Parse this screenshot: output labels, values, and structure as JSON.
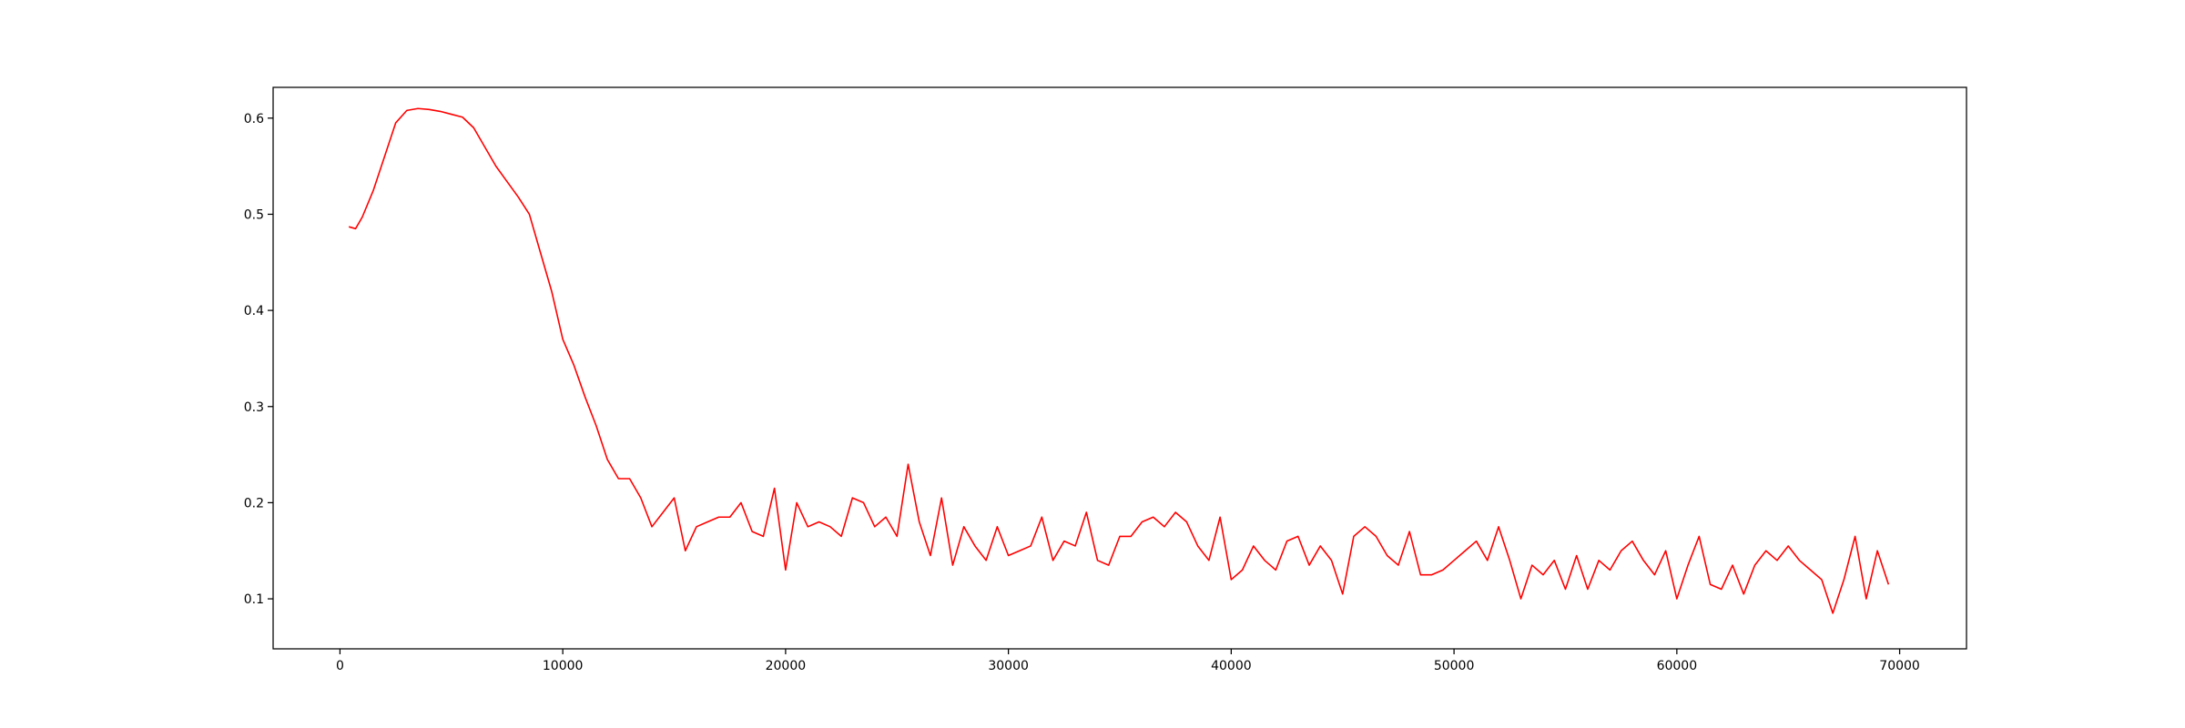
{
  "chart_data": {
    "type": "line",
    "title": "",
    "xlabel": "",
    "ylabel": "",
    "xlim": [
      -3000,
      73000
    ],
    "ylim": [
      0.048,
      0.632
    ],
    "xticks": [
      0,
      10000,
      20000,
      30000,
      40000,
      50000,
      60000,
      70000
    ],
    "xtick_labels": [
      "0",
      "10000",
      "20000",
      "30000",
      "40000",
      "50000",
      "60000",
      "70000"
    ],
    "yticks": [
      0.1,
      0.2,
      0.3,
      0.4,
      0.5,
      0.6
    ],
    "ytick_labels": [
      "0.1",
      "0.2",
      "0.3",
      "0.4",
      "0.5",
      "0.6"
    ],
    "grid": false,
    "legend": "none",
    "series": [
      {
        "color": "#ff0000",
        "x": [
          400,
          700,
          1000,
          1500,
          2000,
          2500,
          3000,
          3500,
          4000,
          4500,
          5000,
          5500,
          6000,
          6500,
          7000,
          7500,
          8000,
          8500,
          9000,
          9500,
          10000,
          10500,
          11000,
          11500,
          12000,
          12500,
          13000,
          13500,
          14000,
          14500,
          15000,
          15500,
          16000,
          16500,
          17000,
          17500,
          18000,
          18500,
          19000,
          19500,
          20000,
          20500,
          21000,
          21500,
          22000,
          22500,
          23000,
          23500,
          24000,
          24500,
          25000,
          25500,
          26000,
          26500,
          27000,
          27500,
          28000,
          28500,
          29000,
          29500,
          30000,
          30500,
          31000,
          31500,
          32000,
          32500,
          33000,
          33500,
          34000,
          34500,
          35000,
          35500,
          36000,
          36500,
          37000,
          37500,
          38000,
          38500,
          39000,
          39500,
          40000,
          40500,
          41000,
          41500,
          42000,
          42500,
          43000,
          43500,
          44000,
          44500,
          45000,
          45500,
          46000,
          46500,
          47000,
          47500,
          48000,
          48500,
          49000,
          49500,
          50000,
          50500,
          51000,
          51500,
          52000,
          52500,
          53000,
          53500,
          54000,
          54500,
          55000,
          55500,
          56000,
          56500,
          57000,
          57500,
          58000,
          58500,
          59000,
          59500,
          60000,
          60500,
          61000,
          61500,
          62000,
          62500,
          63000,
          63500,
          64000,
          64500,
          65000,
          65500,
          66000,
          66500,
          67000,
          67500,
          68000,
          68500,
          69000,
          69500
        ],
        "y": [
          0.487,
          0.485,
          0.497,
          0.525,
          0.56,
          0.595,
          0.608,
          0.61,
          0.609,
          0.607,
          0.604,
          0.601,
          0.59,
          0.57,
          0.55,
          0.534,
          0.518,
          0.5,
          0.46,
          0.42,
          0.37,
          0.343,
          0.31,
          0.28,
          0.245,
          0.225,
          0.225,
          0.205,
          0.175,
          0.19,
          0.205,
          0.15,
          0.175,
          0.18,
          0.185,
          0.185,
          0.2,
          0.17,
          0.165,
          0.215,
          0.13,
          0.2,
          0.175,
          0.18,
          0.175,
          0.165,
          0.205,
          0.2,
          0.175,
          0.185,
          0.165,
          0.24,
          0.18,
          0.145,
          0.205,
          0.135,
          0.175,
          0.155,
          0.14,
          0.175,
          0.145,
          0.15,
          0.155,
          0.185,
          0.14,
          0.16,
          0.155,
          0.19,
          0.14,
          0.135,
          0.165,
          0.165,
          0.18,
          0.185,
          0.175,
          0.19,
          0.18,
          0.155,
          0.14,
          0.185,
          0.12,
          0.13,
          0.155,
          0.14,
          0.13,
          0.16,
          0.165,
          0.135,
          0.155,
          0.14,
          0.105,
          0.165,
          0.175,
          0.165,
          0.145,
          0.135,
          0.17,
          0.125,
          0.125,
          0.13,
          0.14,
          0.15,
          0.16,
          0.14,
          0.175,
          0.14,
          0.1,
          0.135,
          0.125,
          0.14,
          0.11,
          0.145,
          0.11,
          0.14,
          0.13,
          0.15,
          0.16,
          0.14,
          0.125,
          0.15,
          0.1,
          0.135,
          0.165,
          0.115,
          0.11,
          0.135,
          0.105,
          0.135,
          0.15,
          0.14,
          0.155,
          0.14,
          0.13,
          0.12,
          0.085,
          0.12,
          0.165,
          0.1,
          0.15,
          0.115
        ]
      }
    ]
  }
}
